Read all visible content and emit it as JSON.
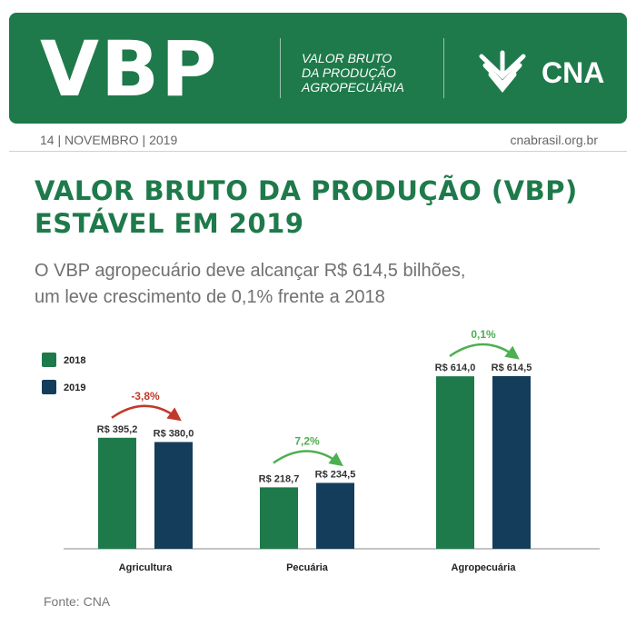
{
  "header": {
    "logo_text": "VBP",
    "subtitle_lines": [
      "VALOR BRUTO",
      "DA PRODUÇÃO",
      "AGROPECUÁRIA"
    ],
    "brand": "CNA",
    "brand_icon": "cna-leaf-icon",
    "background_color": "#1e7a4a"
  },
  "meta": {
    "date": "14 | NOVEMBRO | 2019",
    "site": "cnabrasil.org.br"
  },
  "headline": {
    "lines": [
      "VALOR BRUTO DA PRODUÇÃO (VBP)",
      "ESTÁVEL EM 2019"
    ],
    "color": "#1e7a4a"
  },
  "lede": {
    "lines": [
      "O VBP agropecuário deve alcançar R$ 614,5 bilhões,",
      "um leve crescimento de 0,1% frente a 2018"
    ]
  },
  "chart_data": {
    "type": "bar",
    "categories": [
      "Agricultura",
      "Pecuária",
      "Agropecuária"
    ],
    "series": [
      {
        "name": "2018",
        "values": [
          395.2,
          218.7,
          614.0
        ],
        "labels": [
          "R$ 395,2",
          "R$ 218,7",
          "R$ 614,0"
        ],
        "color": "#1e7a4a"
      },
      {
        "name": "2019",
        "values": [
          380.0,
          234.5,
          614.5
        ],
        "labels": [
          "R$ 380,0",
          "R$ 234,5",
          "R$ 614,5"
        ],
        "color": "#143d5c"
      }
    ],
    "changes": [
      {
        "label": "-3,8%",
        "direction": "down",
        "color": "#c0392b"
      },
      {
        "label": "7,2%",
        "direction": "up",
        "color": "#4caf50"
      },
      {
        "label": "0,1%",
        "direction": "up",
        "color": "#4caf50"
      }
    ],
    "ylim": [
      0,
      614.5
    ],
    "grid": false,
    "legend_placement": "top-left",
    "xlabel": "",
    "ylabel": ""
  },
  "footer": {
    "source": "Fonte: CNA"
  }
}
